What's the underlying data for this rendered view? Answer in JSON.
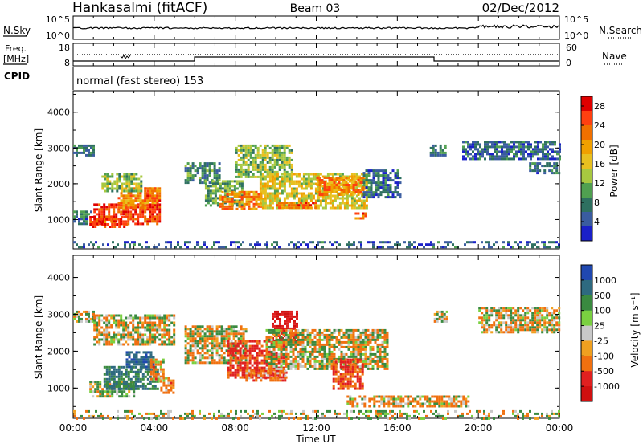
{
  "header": {
    "station": "Hankasalmi (fitACF)",
    "beam": "Beam 03",
    "date": "02/Dec/2012"
  },
  "aux": {
    "nsky_label": "N.Sky",
    "nsky_ticks": [
      "10^5",
      "10^0"
    ],
    "nsearch_label": "N.Search",
    "nsearch_ticks": [
      "10^5",
      "10^0"
    ],
    "freq_label_1": "Freq.",
    "freq_label_2": "[MHz]",
    "freq_ticks": [
      "18",
      "8"
    ],
    "nave_label": "Nave",
    "nave_ticks": [
      "60",
      "0"
    ],
    "cpid_label": "CPID",
    "cpid_text": "normal (fast stereo) 153"
  },
  "axes": {
    "xlabel": "Time UT",
    "ylabel": "Slant Range [km]",
    "x_ticks": [
      "00:00",
      "04:00",
      "08:00",
      "12:00",
      "16:00",
      "20:00",
      "00:00"
    ],
    "y_ticks": [
      "1000",
      "2000",
      "3000",
      "4000"
    ],
    "x_range_hours": [
      0,
      24
    ],
    "y_range_km": [
      180,
      4600
    ]
  },
  "power_scale": {
    "label": "Power [dB]",
    "ticks": [
      "28",
      "24",
      "20",
      "16",
      "12",
      "8",
      "4"
    ],
    "colors": [
      "#e00000",
      "#ff4010",
      "#f07000",
      "#f0a000",
      "#e8c020",
      "#a8c840",
      "#50a050",
      "#2e7060",
      "#3a5ca0",
      "#1a20c8"
    ]
  },
  "velocity_scale": {
    "label": "Velocity [m s⁻¹]",
    "ticks": [
      "1000",
      "500",
      "100",
      "25",
      "-25",
      "-100",
      "-500",
      "-1000"
    ],
    "colors": [
      "#2048b0",
      "#2e6a80",
      "#3a8a40",
      "#7ad040",
      "#c8c8c8",
      "#f0a020",
      "#f07010",
      "#e02020",
      "#d01010"
    ]
  },
  "chart_data": [
    {
      "type": "heatmap",
      "title": "Power",
      "xlabel": "Time UT",
      "ylabel": "Slant Range [km]",
      "xlim": [
        0,
        24
      ],
      "ylim": [
        180,
        4600
      ],
      "colorbar": {
        "label": "Power [dB]",
        "range": [
          0,
          30
        ]
      },
      "regions": [
        {
          "t": [
            0.0,
            1.0
          ],
          "r": [
            2800,
            3100
          ],
          "value": 6
        },
        {
          "t": [
            0.0,
            0.9
          ],
          "r": [
            900,
            1250
          ],
          "value": 6
        },
        {
          "t": [
            0.8,
            2.6
          ],
          "r": [
            800,
            1100
          ],
          "value": 26
        },
        {
          "t": [
            1.0,
            4.3
          ],
          "r": [
            900,
            1450
          ],
          "value": 27
        },
        {
          "t": [
            2.2,
            4.2
          ],
          "r": [
            1300,
            1900
          ],
          "value": 22
        },
        {
          "t": [
            1.4,
            3.4
          ],
          "r": [
            1800,
            2300
          ],
          "value": 12
        },
        {
          "t": [
            3.5,
            4.3
          ],
          "r": [
            1500,
            1900
          ],
          "value": 24
        },
        {
          "t": [
            5.5,
            7.2
          ],
          "r": [
            2000,
            2600
          ],
          "value": 8
        },
        {
          "t": [
            6.5,
            8.4
          ],
          "r": [
            1400,
            2100
          ],
          "value": 10
        },
        {
          "t": [
            7.2,
            9.4
          ],
          "r": [
            1300,
            1800
          ],
          "value": 22
        },
        {
          "t": [
            8.0,
            10.8
          ],
          "r": [
            2200,
            3100
          ],
          "value": 12
        },
        {
          "t": [
            9.2,
            14.5
          ],
          "r": [
            1300,
            2300
          ],
          "value": 16
        },
        {
          "t": [
            10.0,
            12.0
          ],
          "r": [
            1300,
            1500
          ],
          "value": 24
        },
        {
          "t": [
            12.0,
            14.3
          ],
          "r": [
            1700,
            2200
          ],
          "value": 22
        },
        {
          "t": [
            13.9,
            14.4
          ],
          "r": [
            1000,
            1200
          ],
          "value": 24
        },
        {
          "t": [
            14.3,
            16.2
          ],
          "r": [
            1600,
            2400
          ],
          "value": 5
        },
        {
          "t": [
            17.6,
            18.4
          ],
          "r": [
            2800,
            3100
          ],
          "value": 6
        },
        {
          "t": [
            19.2,
            24.0
          ],
          "r": [
            2700,
            3200
          ],
          "value": 5
        },
        {
          "t": [
            22.5,
            24.0
          ],
          "r": [
            2300,
            2600
          ],
          "value": 6
        },
        {
          "t": [
            0.0,
            24.0
          ],
          "r": [
            200,
            400
          ],
          "value": 4
        }
      ]
    },
    {
      "type": "heatmap",
      "title": "Velocity",
      "xlabel": "Time UT",
      "ylabel": "Slant Range [km]",
      "xlim": [
        0,
        24
      ],
      "ylim": [
        180,
        4600
      ],
      "colorbar": {
        "label": "Velocity [m s⁻¹]",
        "range": [
          -1000,
          1000
        ]
      },
      "regions": [
        {
          "t": [
            0.0,
            1.0
          ],
          "r": [
            2800,
            3100
          ],
          "value": 0
        },
        {
          "t": [
            1.0,
            5.0
          ],
          "r": [
            2200,
            3000
          ],
          "value": 0
        },
        {
          "t": [
            0.8,
            3.0
          ],
          "r": [
            800,
            1200
          ],
          "value": 80
        },
        {
          "t": [
            1.5,
            4.2
          ],
          "r": [
            1000,
            1600
          ],
          "value": 300
        },
        {
          "t": [
            2.6,
            4.0
          ],
          "r": [
            1500,
            2000
          ],
          "value": 600
        },
        {
          "t": [
            3.8,
            4.4
          ],
          "r": [
            1200,
            1800
          ],
          "value": -120
        },
        {
          "t": [
            4.3,
            5.0
          ],
          "r": [
            900,
            1300
          ],
          "value": -120
        },
        {
          "t": [
            5.5,
            8.5
          ],
          "r": [
            1700,
            2700
          ],
          "value": 0
        },
        {
          "t": [
            7.6,
            10.5
          ],
          "r": [
            1300,
            2300
          ],
          "value": -400
        },
        {
          "t": [
            9.8,
            11.0
          ],
          "r": [
            2300,
            3100
          ],
          "value": -700
        },
        {
          "t": [
            8.5,
            10.5
          ],
          "r": [
            1200,
            1500
          ],
          "value": -150
        },
        {
          "t": [
            9.5,
            15.5
          ],
          "r": [
            1500,
            2600
          ],
          "value": 0
        },
        {
          "t": [
            12.8,
            14.3
          ],
          "r": [
            1000,
            1800
          ],
          "value": -300
        },
        {
          "t": [
            13.5,
            19.5
          ],
          "r": [
            500,
            800
          ],
          "value": -100
        },
        {
          "t": [
            17.8,
            18.5
          ],
          "r": [
            2800,
            3100
          ],
          "value": 0
        },
        {
          "t": [
            20.0,
            24.0
          ],
          "r": [
            2500,
            3200
          ],
          "value": 0
        },
        {
          "t": [
            0.0,
            24.0
          ],
          "r": [
            200,
            400
          ],
          "value": 30
        }
      ]
    }
  ]
}
